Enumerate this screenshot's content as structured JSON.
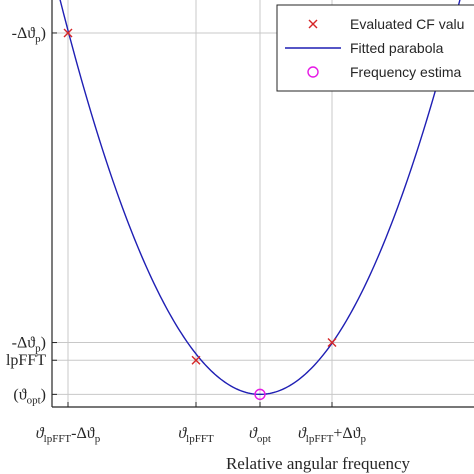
{
  "chart_data": {
    "type": "line",
    "xlabel": "Relative angular frequency",
    "ylabel": "",
    "xlim": [
      -1.3,
      1.4
    ],
    "ylim": [
      -0.05,
      1.6
    ],
    "grid": true,
    "legend_position": "top-right",
    "colors": {
      "axis": "#262626",
      "grid": "#c8c8c8",
      "points": "#d62728",
      "parabola": "#1f1fb4",
      "estimate": "#e619e6"
    },
    "x_ticks": [
      {
        "x": -1.2,
        "main": "ϑ",
        "sub": "lpFFT",
        "suffix": "-Δϑ",
        "suffix_sub": "p"
      },
      {
        "x": -0.4,
        "main": "ϑ",
        "sub": "lpFFT",
        "suffix": "",
        "suffix_sub": ""
      },
      {
        "x": 0.0,
        "main": "ϑ",
        "sub": "opt",
        "suffix": "",
        "suffix_sub": ""
      },
      {
        "x": 0.45,
        "main": "ϑ",
        "sub": "lpFFT",
        "suffix": "+Δϑ",
        "suffix_sub": "p"
      }
    ],
    "y_ticks": [
      {
        "y": 1.43,
        "text": "-Δϑ",
        "sub": "p",
        "close": ")"
      },
      {
        "y": 0.205,
        "text": "-Δϑ",
        "sub": "p",
        "close": ")"
      },
      {
        "y": 0.135,
        "text": "lpFFT",
        "sub": "",
        "close": ""
      },
      {
        "y": 0.0,
        "text": "(ϑ",
        "sub": "opt",
        "close": ")"
      }
    ],
    "series": [
      {
        "name": "Evaluated CF values",
        "style": "markers-x",
        "x": [
          -1.2,
          -0.4,
          0.45
        ],
        "y": [
          1.43,
          0.135,
          0.205
        ]
      },
      {
        "name": "Fitted parabola",
        "style": "line",
        "x_range": [
          -1.3,
          1.4
        ],
        "a": 1.0,
        "x0": 0.0,
        "c": 0.0
      },
      {
        "name": "Frequency estimate",
        "style": "marker-circle",
        "x": [
          0.0
        ],
        "y": [
          0.0
        ]
      }
    ],
    "legend": [
      {
        "label": "Evaluated CF valu",
        "marker": "x"
      },
      {
        "label": "Fitted parabola",
        "marker": "line"
      },
      {
        "label": "Frequency estima",
        "marker": "circle"
      }
    ]
  }
}
